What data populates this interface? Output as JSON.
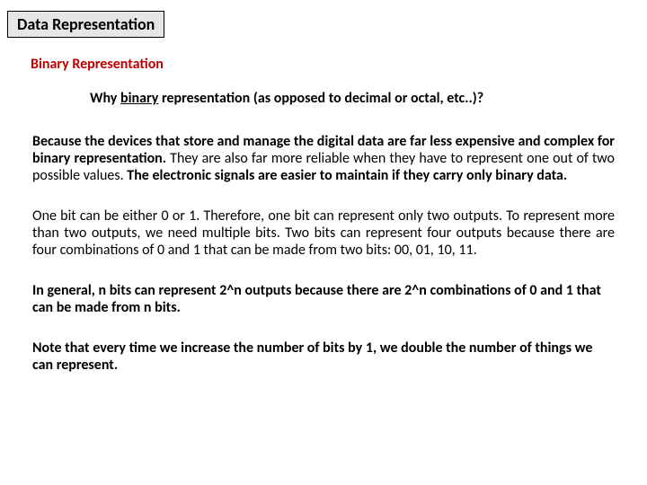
{
  "title": "Data Representation",
  "subheading": "Binary Representation",
  "question_pre": "Why ",
  "question_underlined": "binary",
  "question_post": " representation (as opposed to decimal or octal, etc..)?",
  "p1_a": "Because the devices that store and manage the digital data are far less expensive and complex for binary representation.",
  "p1_b": " They are also far more reliable when they have to represent one out of two possible values. ",
  "p1_c": "The electronic signals are easier to maintain if they carry only binary data.",
  "p2": "One bit can be either 0 or 1. Therefore, one bit can represent only two outputs. To represent more than two outputs, we need multiple bits. Two bits can represent four outputs because there are four combinations of 0 and 1 that can be made from two bits: 00, 01, 10, 11.",
  "p3_a": "In general, n bits can represent 2^n outputs because there are 2^n combinations of 0 and 1 that can be made from n bits.",
  "p4_note": "Note",
  "p4_rest": " that every time we increase the number of bits by 1, we double the number of things we can represent."
}
